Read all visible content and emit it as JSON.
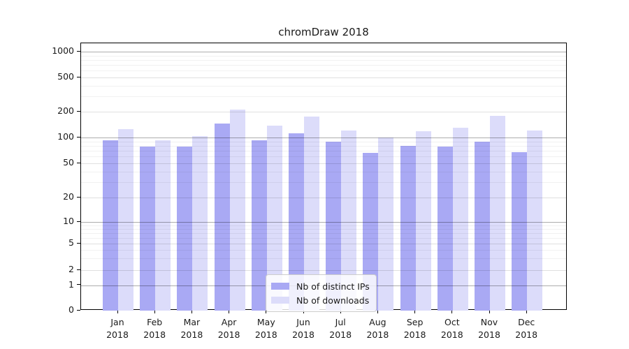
{
  "title": "chromDraw 2018",
  "legend": {
    "items": [
      {
        "label": "Nb of distinct IPs",
        "color": "#a9a9f4"
      },
      {
        "label": "Nb of downloads",
        "color": "#dcdcfa"
      }
    ]
  },
  "chart_data": {
    "type": "bar",
    "title": "chromDraw 2018",
    "categories": [
      "Jan 2018",
      "Feb 2018",
      "Mar 2018",
      "Apr 2018",
      "May 2018",
      "Jun 2018",
      "Jul 2018",
      "Aug 2018",
      "Sep 2018",
      "Oct 2018",
      "Nov 2018",
      "Dec 2018"
    ],
    "series": [
      {
        "name": "Nb of distinct IPs",
        "color": "#a9a9f4",
        "values": [
          92,
          79,
          78,
          145,
          93,
          112,
          90,
          66,
          80,
          78,
          89,
          68
        ]
      },
      {
        "name": "Nb of downloads",
        "color": "#dcdcfa",
        "values": [
          125,
          92,
          103,
          210,
          138,
          175,
          120,
          100,
          118,
          129,
          180,
          121
        ]
      }
    ],
    "xlabel": "",
    "ylabel": "",
    "yscale": "log-like with 0 baseline",
    "y_ticks": [
      0,
      1,
      2,
      5,
      10,
      20,
      50,
      100,
      200,
      500,
      1000
    ],
    "ylim": [
      0,
      1300
    ],
    "grid": true,
    "legend_position": "inside lower-center"
  }
}
